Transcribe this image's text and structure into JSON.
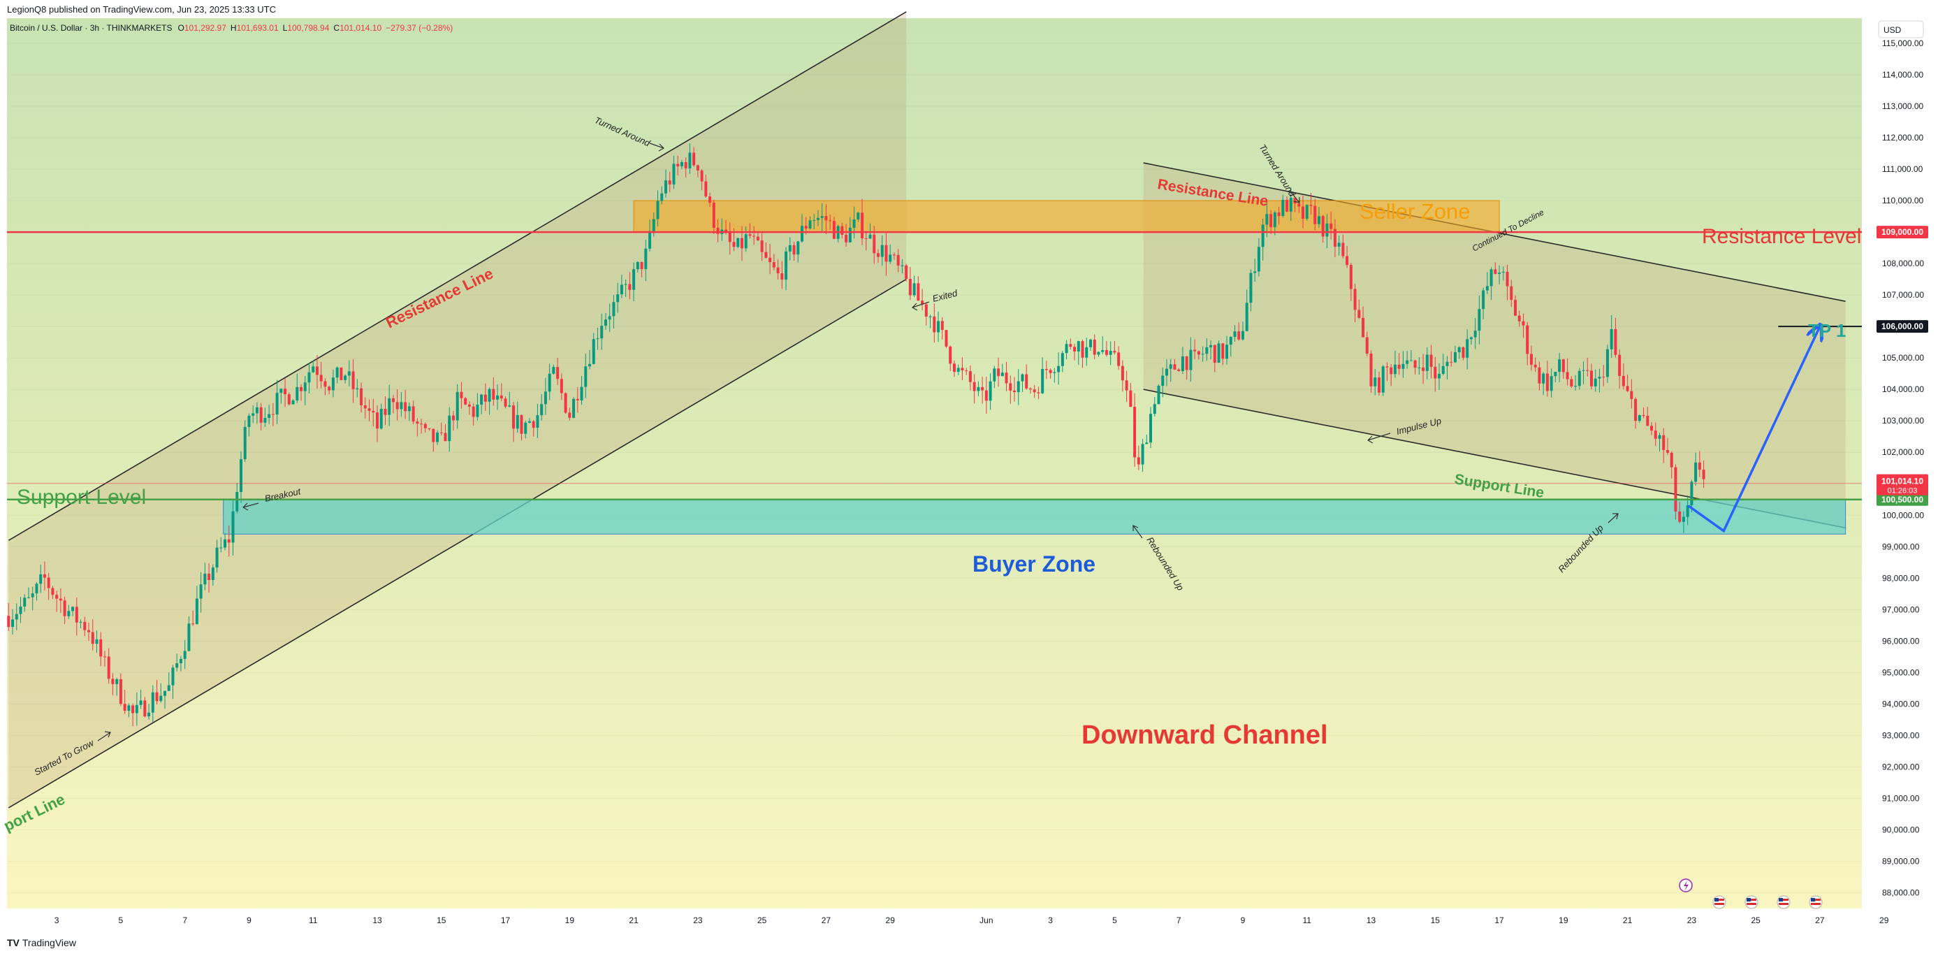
{
  "header": {
    "published": "LegionQ8 published on TradingView.com, Jun 23, 2025 13:33 UTC"
  },
  "symbol": {
    "name": "Bitcoin / U.S. Dollar · 3h · THINKMARKETS",
    "open_label": "O",
    "open": "101,292.97",
    "high_label": "H",
    "high": "101,693.01",
    "low_label": "L",
    "low": "100,798.94",
    "close_label": "C",
    "close": "101,014.10",
    "change": "−279.37 (−0.28%)"
  },
  "currency_button": "USD",
  "footer": {
    "brand": "TradingView"
  },
  "colors": {
    "up": "#089981",
    "down": "#f23645",
    "resistance": "#f23645",
    "support": "#43a047",
    "buyer_zone": "#80d8c8",
    "seller_zone": "#f5a623",
    "projection": "#2962ff"
  },
  "chart_data": {
    "type": "candlestick",
    "ylim": [
      87500,
      115800
    ],
    "y_ticks": [
      88000,
      89000,
      90000,
      91000,
      92000,
      93000,
      94000,
      95000,
      96000,
      97000,
      98000,
      99000,
      100000,
      101000,
      102000,
      103000,
      104000,
      105000,
      106000,
      107000,
      108000,
      109000,
      110000,
      111000,
      112000,
      113000,
      114000,
      115000
    ],
    "x_labels": [
      {
        "day": 3,
        "label": "3"
      },
      {
        "day": 5,
        "label": "5"
      },
      {
        "day": 7,
        "label": "7"
      },
      {
        "day": 9,
        "label": "9"
      },
      {
        "day": 11,
        "label": "11"
      },
      {
        "day": 13,
        "label": "13"
      },
      {
        "day": 15,
        "label": "15"
      },
      {
        "day": 17,
        "label": "17"
      },
      {
        "day": 19,
        "label": "19"
      },
      {
        "day": 21,
        "label": "21"
      },
      {
        "day": 23,
        "label": "23"
      },
      {
        "day": 25,
        "label": "25"
      },
      {
        "day": 27,
        "label": "27"
      },
      {
        "day": 29,
        "label": "29"
      },
      {
        "day": 32,
        "label": "Jun"
      },
      {
        "day": 34,
        "label": "3"
      },
      {
        "day": 36,
        "label": "5"
      },
      {
        "day": 38,
        "label": "7"
      },
      {
        "day": 40,
        "label": "9"
      },
      {
        "day": 42,
        "label": "11"
      },
      {
        "day": 44,
        "label": "13"
      },
      {
        "day": 46,
        "label": "15"
      },
      {
        "day": 48,
        "label": "17"
      },
      {
        "day": 50,
        "label": "19"
      },
      {
        "day": 52,
        "label": "21"
      },
      {
        "day": 54,
        "label": "23"
      },
      {
        "day": 56,
        "label": "25"
      },
      {
        "day": 58,
        "label": "27"
      },
      {
        "day": 60,
        "label": "29"
      }
    ],
    "x_domain": [
      1.45,
      59.2
    ],
    "price_path": [
      [
        1.5,
        96800
      ],
      [
        2.2,
        97300
      ],
      [
        2.6,
        98000
      ],
      [
        3.0,
        97400
      ],
      [
        3.5,
        96800
      ],
      [
        4.0,
        96400
      ],
      [
        4.5,
        95200
      ],
      [
        5.0,
        94300
      ],
      [
        5.4,
        93600
      ],
      [
        6.0,
        94200
      ],
      [
        6.5,
        94500
      ],
      [
        7.0,
        96000
      ],
      [
        7.4,
        97300
      ],
      [
        8.0,
        98700
      ],
      [
        8.4,
        99300
      ],
      [
        8.7,
        101500
      ],
      [
        9.0,
        103200
      ],
      [
        9.5,
        103300
      ],
      [
        10.0,
        103700
      ],
      [
        10.5,
        104000
      ],
      [
        11.0,
        104800
      ],
      [
        11.5,
        104200
      ],
      [
        12.0,
        104500
      ],
      [
        12.5,
        103600
      ],
      [
        13.0,
        102800
      ],
      [
        13.5,
        103800
      ],
      [
        14.0,
        103200
      ],
      [
        14.5,
        102500
      ],
      [
        15.0,
        102300
      ],
      [
        15.5,
        103600
      ],
      [
        16.0,
        103300
      ],
      [
        16.5,
        103800
      ],
      [
        17.0,
        103300
      ],
      [
        17.5,
        102800
      ],
      [
        18.0,
        103200
      ],
      [
        18.5,
        104500
      ],
      [
        19.0,
        103200
      ],
      [
        19.5,
        104800
      ],
      [
        20.0,
        106200
      ],
      [
        20.5,
        106800
      ],
      [
        21.0,
        107600
      ],
      [
        21.4,
        108300
      ],
      [
        21.8,
        110200
      ],
      [
        22.2,
        110800
      ],
      [
        22.6,
        111300
      ],
      [
        23.0,
        111200
      ],
      [
        23.4,
        109600
      ],
      [
        23.8,
        108800
      ],
      [
        24.2,
        108400
      ],
      [
        24.6,
        108900
      ],
      [
        25.0,
        108200
      ],
      [
        25.5,
        107600
      ],
      [
        26.0,
        108500
      ],
      [
        26.5,
        109500
      ],
      [
        27.0,
        109400
      ],
      [
        27.5,
        108800
      ],
      [
        28.0,
        109300
      ],
      [
        28.5,
        108600
      ],
      [
        29.0,
        108200
      ],
      [
        29.5,
        107400
      ],
      [
        29.9,
        106800
      ],
      [
        30.3,
        106300
      ],
      [
        30.7,
        105500
      ],
      [
        31.1,
        104600
      ],
      [
        31.5,
        104200
      ],
      [
        31.9,
        103600
      ],
      [
        32.3,
        104500
      ],
      [
        32.7,
        104300
      ],
      [
        33.1,
        104200
      ],
      [
        33.5,
        104000
      ],
      [
        33.9,
        104700
      ],
      [
        34.3,
        105000
      ],
      [
        34.7,
        105600
      ],
      [
        35.1,
        105200
      ],
      [
        35.5,
        105400
      ],
      [
        35.9,
        104900
      ],
      [
        36.2,
        104800
      ],
      [
        36.5,
        103200
      ],
      [
        36.7,
        101200
      ],
      [
        36.9,
        102200
      ],
      [
        37.3,
        104000
      ],
      [
        37.7,
        104500
      ],
      [
        38.1,
        105000
      ],
      [
        38.5,
        104900
      ],
      [
        38.9,
        105300
      ],
      [
        39.3,
        105100
      ],
      [
        39.7,
        105500
      ],
      [
        40.0,
        106000
      ],
      [
        40.3,
        107700
      ],
      [
        40.6,
        109200
      ],
      [
        41.0,
        109600
      ],
      [
        41.4,
        109900
      ],
      [
        41.8,
        109500
      ],
      [
        42.2,
        109600
      ],
      [
        42.6,
        109000
      ],
      [
        43.0,
        108500
      ],
      [
        43.4,
        107200
      ],
      [
        43.8,
        105300
      ],
      [
        44.1,
        104000
      ],
      [
        44.5,
        104600
      ],
      [
        44.9,
        105000
      ],
      [
        45.3,
        104600
      ],
      [
        45.7,
        105000
      ],
      [
        46.1,
        104300
      ],
      [
        46.5,
        105100
      ],
      [
        46.9,
        105300
      ],
      [
        47.3,
        106300
      ],
      [
        47.7,
        107500
      ],
      [
        48.0,
        107900
      ],
      [
        48.3,
        106900
      ],
      [
        48.7,
        106000
      ],
      [
        49.1,
        104600
      ],
      [
        49.5,
        104200
      ],
      [
        49.9,
        104700
      ],
      [
        50.3,
        104100
      ],
      [
        50.7,
        104400
      ],
      [
        51.1,
        104100
      ],
      [
        51.5,
        105700
      ],
      [
        51.8,
        104100
      ],
      [
        52.1,
        103600
      ],
      [
        52.5,
        102900
      ],
      [
        52.9,
        102500
      ],
      [
        53.3,
        101800
      ],
      [
        53.5,
        100200
      ],
      [
        53.7,
        99500
      ],
      [
        53.9,
        100200
      ],
      [
        54.1,
        101400
      ],
      [
        54.3,
        101600
      ],
      [
        54.45,
        101014
      ]
    ],
    "series": [
      {
        "name": "Resistance Level",
        "kind": "hline",
        "value": 109000,
        "label": "Resistance Level"
      },
      {
        "name": "Support Level",
        "kind": "hline",
        "value": 100500,
        "label": "Support Level"
      },
      {
        "name": "TP 1",
        "kind": "hline",
        "value": 106000,
        "label": "TP 1"
      }
    ],
    "last_price": {
      "value": 101014.1,
      "label": "101,014.10",
      "countdown": "01:26:03"
    },
    "axis_tags": [
      {
        "value": 109000,
        "label": "109,000.00",
        "color": "#f23645"
      },
      {
        "value": 106000,
        "label": "106,000.00",
        "color": "#131722"
      },
      {
        "value": 100500,
        "label": "100,500.00",
        "color": "#43a047"
      }
    ],
    "zones": [
      {
        "name": "Seller Zone",
        "label": "Seller Zone",
        "x": [
          21.0,
          48.0
        ],
        "y": [
          109000,
          110000
        ]
      },
      {
        "name": "Buyer Zone",
        "label": "Buyer Zone",
        "x": [
          8.2,
          58.8
        ],
        "y": [
          99400,
          100500
        ]
      }
    ],
    "channels": [
      {
        "name": "upward-channel",
        "upper": [
          [
            1.5,
            99200
          ],
          [
            29.5,
            116000
          ]
        ],
        "lower": [
          [
            1.5,
            90700
          ],
          [
            29.5,
            107500
          ]
        ],
        "shade_x": [
          1.5,
          29.5
        ]
      },
      {
        "name": "downward-channel",
        "upper": [
          [
            36.9,
            111200
          ],
          [
            58.8,
            106800
          ]
        ],
        "lower": [
          [
            36.9,
            104000
          ],
          [
            58.8,
            99600
          ]
        ],
        "shade_x": [
          36.9,
          58.8
        ]
      }
    ],
    "projection": [
      [
        53.9,
        100300
      ],
      [
        55.0,
        99500
      ],
      [
        58.0,
        106000
      ]
    ],
    "text_labels": {
      "resistance_line_left": "Resistance Line",
      "support_line_left": "port Line",
      "resistance_line_right": "Resistance Line",
      "support_line_right": "Support Line",
      "downward_channel": "Downward Channel",
      "turned_around_left": "Turned Around",
      "turned_around_right": "Turned Around",
      "exited": "Exited",
      "breakout": "Breakout",
      "started_to_grow": "Started To Grow",
      "rebounded_up_1": "Rebounded Up",
      "rebounded_up_2": "Rebounded Up",
      "impulse_up": "Impulse Up",
      "continued_to_decline": "Continued To Decline"
    }
  }
}
